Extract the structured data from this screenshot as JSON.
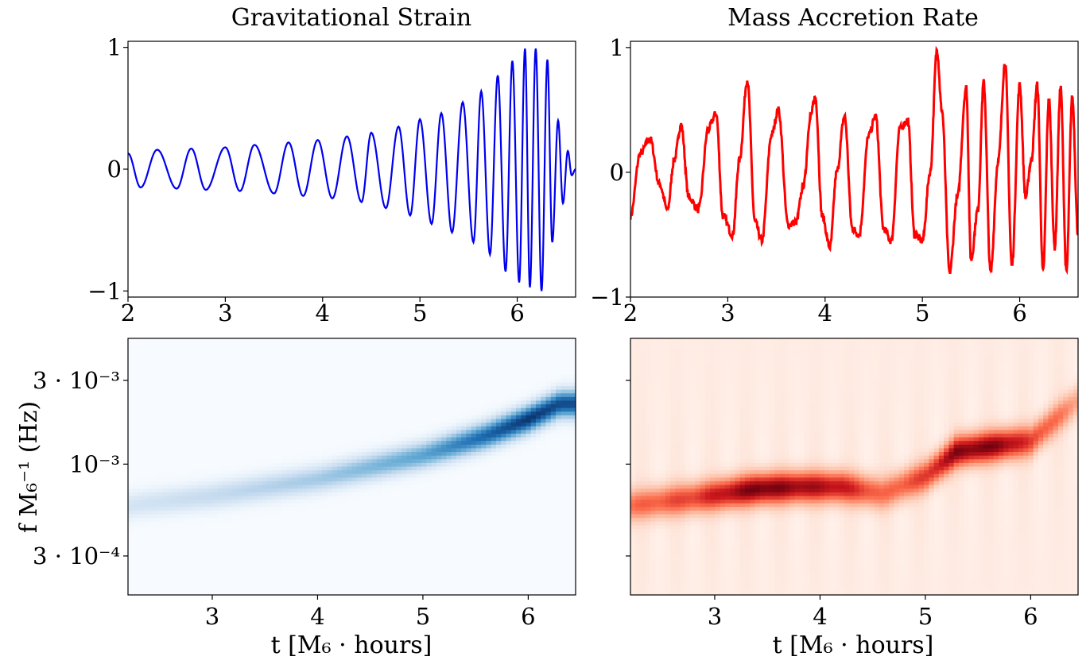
{
  "chart_data": [
    {
      "id": "strain",
      "type": "line",
      "title": "Gravitational Strain",
      "xlim": [
        2,
        6.6
      ],
      "ylim": [
        -1.05,
        1.05
      ],
      "xticks": [
        "2",
        "3",
        "4",
        "5",
        "6"
      ],
      "xtick_values": [
        2,
        3,
        4,
        5,
        6
      ],
      "yticks": [
        "1",
        "0",
        "−1"
      ],
      "ytick_values": [
        1,
        0,
        -1
      ],
      "color": "#0000ee",
      "series": [
        {
          "description": "chirp: oscillation with growing amplitude and frequency, peak normalised to 1 near t=6.2",
          "x": [
            2.0,
            2.13,
            2.3,
            2.5,
            2.65,
            2.8,
            3.0,
            3.15,
            3.3,
            3.5,
            3.65,
            3.8,
            3.95,
            4.1,
            4.25,
            4.4,
            4.5,
            4.65,
            4.78,
            4.9,
            5.0,
            5.12,
            5.22,
            5.33,
            5.44,
            5.55,
            5.63,
            5.72,
            5.8,
            5.88,
            5.95,
            6.02,
            6.08,
            6.13,
            6.19,
            6.25,
            6.31,
            6.36,
            6.42,
            6.47,
            6.52,
            6.56,
            6.6
          ],
          "y": [
            0.13,
            -0.15,
            0.16,
            -0.16,
            0.17,
            -0.17,
            0.18,
            -0.18,
            0.2,
            -0.2,
            0.22,
            -0.22,
            0.24,
            -0.24,
            0.27,
            -0.27,
            0.3,
            -0.32,
            0.35,
            -0.38,
            0.41,
            -0.45,
            0.46,
            -0.52,
            0.55,
            -0.6,
            0.64,
            -0.7,
            0.77,
            -0.84,
            0.89,
            -0.93,
            0.99,
            -0.97,
            0.99,
            -1.0,
            0.9,
            -0.6,
            0.4,
            -0.28,
            0.15,
            -0.05,
            0.0
          ]
        }
      ]
    },
    {
      "id": "accretion",
      "type": "line",
      "title": "Mass Accretion Rate",
      "xlim": [
        2,
        6.6
      ],
      "ylim": [
        -1.0,
        1.05
      ],
      "xticks": [
        "2",
        "3",
        "4",
        "5",
        "6"
      ],
      "xtick_values": [
        2,
        3,
        4,
        5,
        6
      ],
      "yticks": [
        "1",
        "0",
        "−1"
      ],
      "ytick_values": [
        1,
        0,
        -1
      ],
      "color": "#ff0000",
      "series": [
        {
          "x": [
            2.0,
            2.1,
            2.2,
            2.3,
            2.38,
            2.45,
            2.52,
            2.6,
            2.7,
            2.8,
            2.88,
            2.95,
            3.05,
            3.12,
            3.2,
            3.28,
            3.35,
            3.45,
            3.52,
            3.62,
            3.7,
            3.78,
            3.85,
            3.9,
            3.97,
            4.05,
            4.12,
            4.2,
            4.28,
            4.35,
            4.45,
            4.52,
            4.6,
            4.68,
            4.77,
            4.85,
            4.92,
            5.0,
            5.08,
            5.15,
            5.2,
            5.28,
            5.36,
            5.45,
            5.5,
            5.57,
            5.63,
            5.7,
            5.78,
            5.85,
            5.92,
            6.0,
            6.06,
            6.12,
            6.18,
            6.24,
            6.3,
            6.36,
            6.42,
            6.48,
            6.54,
            6.6
          ],
          "y": [
            -0.35,
            0.15,
            0.27,
            -0.1,
            -0.3,
            0.1,
            0.38,
            -0.2,
            -0.3,
            0.35,
            0.47,
            -0.35,
            -0.5,
            0.1,
            0.74,
            -0.4,
            -0.55,
            0.3,
            0.5,
            -0.42,
            -0.4,
            -0.1,
            0.45,
            0.6,
            -0.35,
            -0.6,
            0.0,
            0.45,
            -0.45,
            -0.5,
            0.3,
            0.45,
            -0.45,
            -0.55,
            0.35,
            0.42,
            -0.5,
            -0.55,
            0.0,
            0.98,
            0.5,
            -0.8,
            -0.2,
            0.68,
            -0.7,
            -0.3,
            0.72,
            -0.8,
            0.1,
            0.88,
            -0.75,
            0.7,
            -0.2,
            0.1,
            0.7,
            -0.8,
            0.58,
            -0.6,
            0.68,
            -0.8,
            0.6,
            -0.5
          ]
        }
      ]
    },
    {
      "id": "strain-spectrogram",
      "type": "heatmap",
      "colormap": "Blues",
      "xlim": [
        2.2,
        6.45
      ],
      "ylim": [
        0.00018,
        0.0052
      ],
      "yscale": "log",
      "xticks": [
        "3",
        "4",
        "5",
        "6"
      ],
      "xtick_values": [
        3,
        4,
        5,
        6
      ],
      "yticks": [
        "3 · 10⁻³",
        "10⁻³",
        "3 · 10⁻⁴"
      ],
      "ytick_values": [
        0.003,
        0.001,
        0.0003
      ],
      "ylabel": "f M₆⁻¹ (Hz)",
      "xlabel": "t [M₆ · hours]",
      "ridge": {
        "t": [
          2.2,
          3.0,
          4.0,
          5.0,
          5.6,
          6.0,
          6.3
        ],
        "f": [
          0.00058,
          0.00066,
          0.00082,
          0.00112,
          0.00145,
          0.0018,
          0.0022
        ],
        "intensity": [
          0.18,
          0.25,
          0.35,
          0.55,
          0.8,
          0.98,
          0.9
        ]
      }
    },
    {
      "id": "accretion-spectrogram",
      "type": "heatmap",
      "colormap": "Reds",
      "xlim": [
        2.2,
        6.45
      ],
      "ylim": [
        0.00018,
        0.0052
      ],
      "yscale": "log",
      "xticks": [
        "3",
        "4",
        "5",
        "6"
      ],
      "xtick_values": [
        3,
        4,
        5,
        6
      ],
      "xlabel": "t [M₆ · hours]",
      "ridge": {
        "t": [
          2.2,
          2.8,
          3.4,
          3.8,
          4.2,
          4.6,
          5.0,
          5.3,
          5.7,
          6.0,
          6.45
        ],
        "f": [
          0.00058,
          0.00064,
          0.00072,
          0.00074,
          0.00074,
          0.00068,
          0.00085,
          0.00118,
          0.00128,
          0.00135,
          0.0023
        ],
        "intensity": [
          0.45,
          0.6,
          0.95,
          0.85,
          0.75,
          0.45,
          0.6,
          0.9,
          0.9,
          0.6,
          0.3
        ]
      }
    }
  ]
}
